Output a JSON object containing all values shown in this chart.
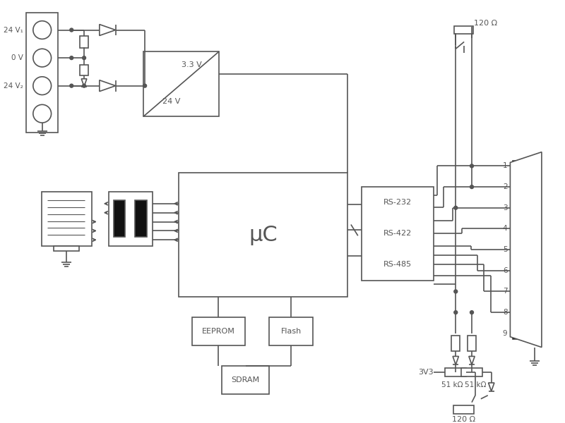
{
  "bg_color": "#ffffff",
  "line_color": "#555555",
  "fill_color": "#111111",
  "fig_width": 8.0,
  "fig_height": 6.0,
  "dpi": 100,
  "labels": {
    "24V1": "24 V₁",
    "0V": "0 V",
    "24V2": "24 V₂",
    "psu_3v3": "3.3 V",
    "psu_24v": "24 V",
    "uc": "μC",
    "eeprom": "EEPROM",
    "flash": "Flash",
    "sdram": "SDRAM",
    "rs232": "RS-232",
    "rs422": "RS-422",
    "rs485": "RS-485",
    "resistor_top": "120 Ω",
    "resistor_bot": "120 Ω",
    "res_51k_left": "51 kΩ",
    "res_51k_right": "51 kΩ",
    "3v3": "3V3",
    "pins": [
      "1",
      "2",
      "3",
      "4",
      "5",
      "6",
      "7",
      "8",
      "9"
    ]
  }
}
